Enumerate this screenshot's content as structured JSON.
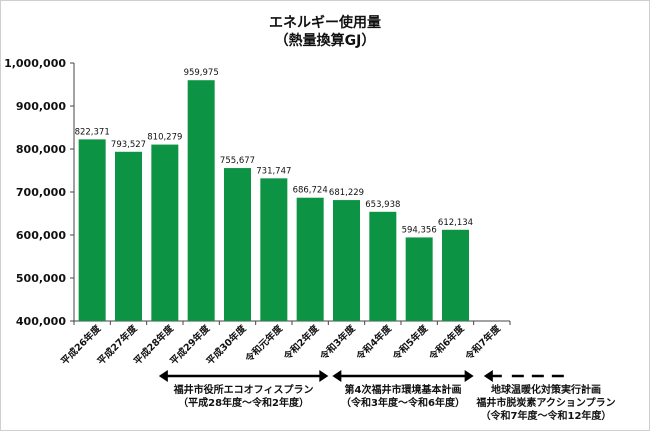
{
  "chart_data": {
    "type": "bar",
    "title": "エネルギー使用量",
    "subtitle": "（熱量換算GJ）",
    "categories": [
      "平成26年度",
      "平成27年度",
      "平成28年度",
      "平成29年度",
      "平成30年度",
      "令和元年度",
      "令和2年度",
      "令和3年度",
      "令和4年度",
      "令和5年度",
      "令和6年度",
      "令和7年度"
    ],
    "values": [
      822371,
      793527,
      810279,
      959975,
      755677,
      731747,
      686724,
      681229,
      653938,
      594356,
      612134,
      null
    ],
    "data_labels": [
      "822,371",
      "793,527",
      "810,279",
      "959,975",
      "755,677",
      "731,747",
      "686,724",
      "681,229",
      "653,938",
      "594,356",
      "612,134",
      ""
    ],
    "ylim": [
      400000,
      1000000
    ],
    "yticks": [
      400000,
      500000,
      600000,
      700000,
      800000,
      900000,
      1000000
    ],
    "ytick_labels": [
      "400,000",
      "500,000",
      "600,000",
      "700,000",
      "800,000",
      "900,000",
      "1,000,000"
    ],
    "grid": false,
    "bar_color": "#0c9444",
    "phases": [
      {
        "lines": [
          "福井市役所エコオフィスプラン",
          "（平成28年度～令和2年度）"
        ],
        "from_category": "平成28年度",
        "to_category": "令和2年度"
      },
      {
        "lines": [
          "第4次福井市環境基本計画",
          "（令和3年度～令和6年度）"
        ],
        "from_category": "令和3年度",
        "to_category": "令和6年度"
      },
      {
        "lines": [
          "地球温暖化対策実行計画",
          "福井市脱炭素アクションプラン",
          "（令和7年度～令和12年度）"
        ],
        "from_category": "令和7年度",
        "to_category": ""
      }
    ]
  }
}
